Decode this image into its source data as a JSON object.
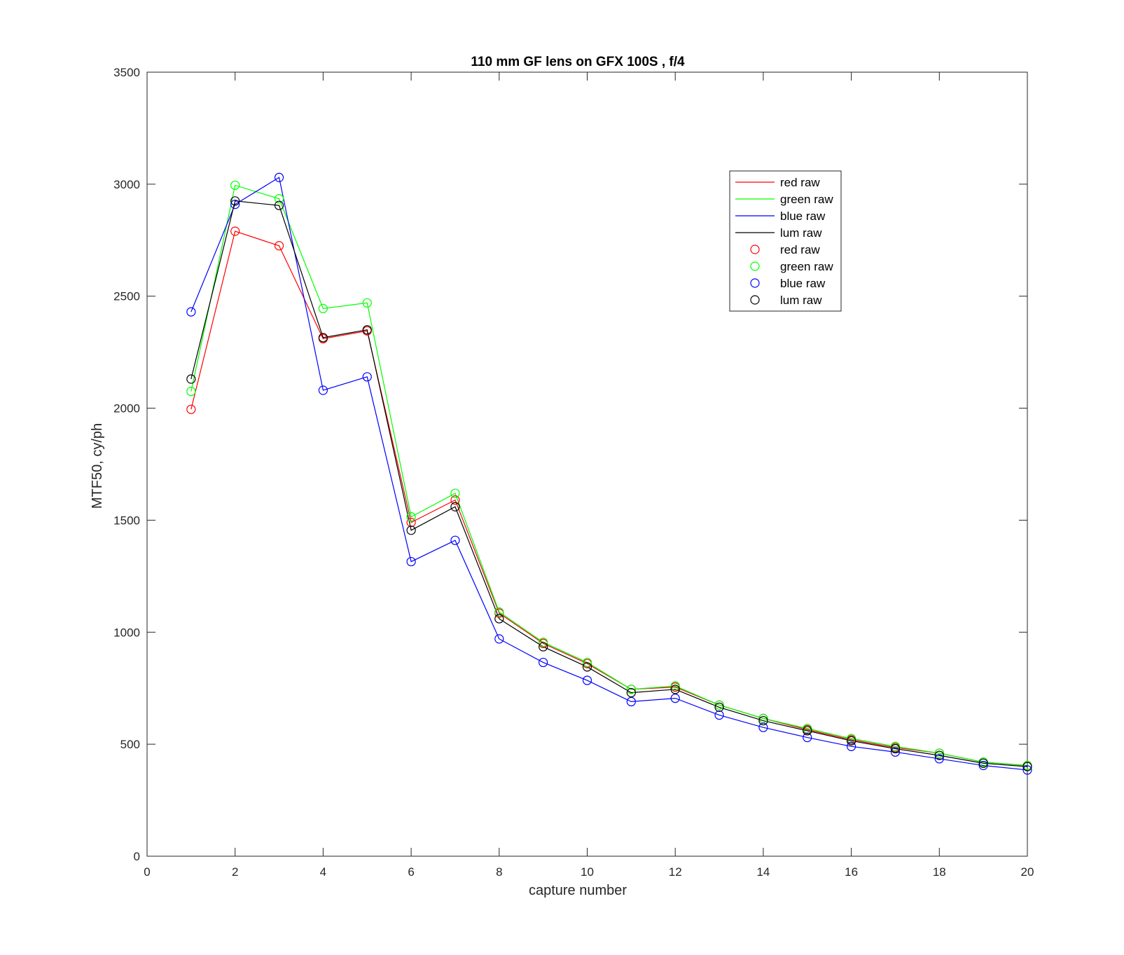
{
  "chart_data": {
    "type": "line",
    "title": "110 mm GF lens on GFX 100S , f/4",
    "xlabel": "capture number",
    "ylabel": "MTF50, cy/ph",
    "xlim": [
      0,
      20
    ],
    "ylim": [
      0,
      3500
    ],
    "xticks": [
      "0",
      "2",
      "4",
      "6",
      "8",
      "10",
      "12",
      "14",
      "16",
      "18",
      "20"
    ],
    "yticks": [
      "0",
      "500",
      "1000",
      "1500",
      "2000",
      "2500",
      "3000",
      "3500"
    ],
    "grid": false,
    "legend_position": "top-right",
    "x": [
      1,
      2,
      3,
      4,
      5,
      6,
      7,
      8,
      9,
      10,
      11,
      12,
      13,
      14,
      15,
      16,
      17,
      18,
      19,
      20
    ],
    "series": [
      {
        "name": "red raw",
        "color": "#ff0000",
        "values": [
          1995,
          2790,
          2725,
          2310,
          2345,
          1490,
          1590,
          1085,
          950,
          860,
          745,
          755,
          675,
          615,
          565,
          520,
          485,
          460,
          420,
          405
        ]
      },
      {
        "name": "green raw",
        "color": "#00ff00",
        "values": [
          2075,
          2995,
          2935,
          2445,
          2470,
          1515,
          1620,
          1090,
          955,
          865,
          745,
          760,
          675,
          615,
          570,
          525,
          490,
          460,
          420,
          405
        ]
      },
      {
        "name": "blue raw",
        "color": "#0000ff",
        "values": [
          2430,
          2910,
          3030,
          2080,
          2140,
          1315,
          1410,
          970,
          865,
          785,
          690,
          705,
          630,
          575,
          530,
          490,
          465,
          435,
          405,
          385
        ]
      },
      {
        "name": "lum raw",
        "color": "#000000",
        "values": [
          2130,
          2925,
          2905,
          2315,
          2350,
          1455,
          1560,
          1060,
          935,
          845,
          730,
          745,
          665,
          605,
          560,
          515,
          480,
          450,
          415,
          400
        ]
      }
    ],
    "legend_entries": [
      {
        "label": "red raw",
        "marker": "line",
        "color": "#ff0000"
      },
      {
        "label": "green raw",
        "marker": "line",
        "color": "#00ff00"
      },
      {
        "label": "blue raw",
        "marker": "line",
        "color": "#0000ff"
      },
      {
        "label": "lum raw",
        "marker": "line",
        "color": "#000000"
      },
      {
        "label": "red raw",
        "marker": "circle",
        "color": "#ff0000"
      },
      {
        "label": "green raw",
        "marker": "circle",
        "color": "#00ff00"
      },
      {
        "label": "blue raw",
        "marker": "circle",
        "color": "#0000ff"
      },
      {
        "label": "lum raw",
        "marker": "circle",
        "color": "#000000"
      }
    ]
  }
}
